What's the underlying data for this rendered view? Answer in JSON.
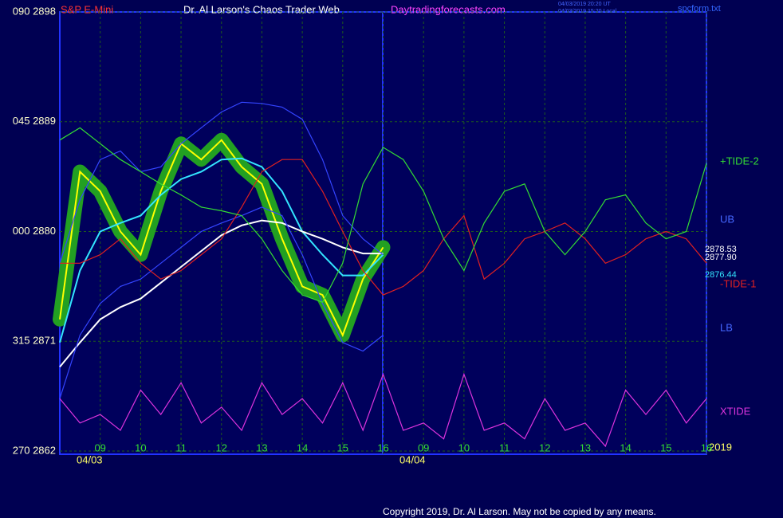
{
  "chart_data": {
    "type": "line",
    "header": {
      "symbol": "S&P E-Mini",
      "title": "Dr. Al Larson's Chaos Trader Web",
      "site": "Daytradingforecasts.com",
      "stamp_ut": "04/03/2019 20:20 UT",
      "stamp_local": "04/03/2019 15:20 Local",
      "file": "spcform.txt"
    },
    "footer": "Copyright 2019, Dr. Al Larson. May not be copied by any means.",
    "dates": [
      "04/03",
      "04/04"
    ],
    "year": "2019",
    "annotations": [
      "2878.53",
      "2877.90",
      "2876.44"
    ],
    "x": [
      0,
      0.5,
      1,
      1.5,
      2,
      2.5,
      3,
      3.5,
      4,
      4.5,
      5,
      5.5,
      6,
      6.5,
      7,
      7.5,
      8,
      8.5,
      9,
      9.5,
      10,
      10.5,
      11,
      11.5,
      12,
      12.5,
      13,
      13.5,
      14,
      14.5,
      15,
      15.5,
      16
    ],
    "xlim": [
      0,
      16
    ],
    "xticks": [
      {
        "value": 1,
        "label": "09"
      },
      {
        "value": 2,
        "label": "10"
      },
      {
        "value": 3,
        "label": "11"
      },
      {
        "value": 4,
        "label": "12"
      },
      {
        "value": 5,
        "label": "13"
      },
      {
        "value": 6,
        "label": "14"
      },
      {
        "value": 7,
        "label": "15"
      },
      {
        "value": 8,
        "label": "16"
      },
      {
        "value": 9,
        "label": "09"
      },
      {
        "value": 10,
        "label": "10"
      },
      {
        "value": 11,
        "label": "11"
      },
      {
        "value": 12,
        "label": "12"
      },
      {
        "value": 13,
        "label": "13"
      },
      {
        "value": 14,
        "label": "14"
      },
      {
        "value": 15,
        "label": "15"
      },
      {
        "value": 16,
        "label": "16"
      }
    ],
    "ylim": [
      2862,
      2898
    ],
    "yticks": [
      {
        "value": 2898,
        "label": "090 2898"
      },
      {
        "value": 2889,
        "label": "045 2889"
      },
      {
        "value": 2880,
        "label": "000 2880"
      },
      {
        "value": 2871,
        "label": "315 2871"
      },
      {
        "value": 2862,
        "label": "270 2862"
      }
    ],
    "grid": true,
    "series": [
      {
        "color": "#ffff00",
        "values": [
          2872.8,
          2884.9,
          2883.3,
          2880.0,
          2878.1,
          2883.3,
          2887.2,
          2885.9,
          2887.5,
          2885.3,
          2883.9,
          2879.4,
          2875.5,
          2874.8,
          2871.5,
          2876.1,
          2878.7,
          null,
          null,
          null,
          null,
          null,
          null,
          null,
          null,
          null,
          null,
          null,
          null,
          null,
          null,
          null,
          null
        ]
      },
      {
        "color": "#33e5ff",
        "values": [
          2870.9,
          2876.8,
          2880.0,
          2880.7,
          2881.3,
          2883.0,
          2884.3,
          2884.9,
          2885.9,
          2886.0,
          2885.3,
          2883.3,
          2880.0,
          2878.1,
          2876.4,
          2876.4,
          2878.1,
          null,
          null,
          null,
          null,
          null,
          null,
          null,
          null,
          null,
          null,
          null,
          null,
          null,
          null,
          null,
          null
        ]
      },
      {
        "color": "#ffffff",
        "values": [
          2868.9,
          2870.9,
          2872.8,
          2873.8,
          2874.5,
          2875.8,
          2877.1,
          2878.4,
          2879.7,
          2880.5,
          2880.9,
          2880.7,
          2880.0,
          2879.4,
          2878.7,
          2878.2,
          2878.2,
          null,
          null,
          null,
          null,
          null,
          null,
          null,
          null,
          null,
          null,
          null,
          null,
          null,
          null,
          null,
          null
        ]
      },
      {
        "name": "UB",
        "color": "#3344ff",
        "values": [
          2877.4,
          2882.6,
          2885.9,
          2886.6,
          2884.9,
          2885.3,
          2887.2,
          2888.5,
          2889.8,
          2890.6,
          2890.5,
          2890.2,
          2889.2,
          2885.9,
          2881.3,
          2879.4,
          2878.1,
          null,
          null,
          null,
          null,
          null,
          null,
          null,
          null,
          null,
          null,
          null,
          null,
          null,
          null,
          null,
          null
        ]
      },
      {
        "name": "LB",
        "color": "#3344ff",
        "values": [
          2866.3,
          2871.5,
          2874.1,
          2875.5,
          2876.1,
          2877.4,
          2878.7,
          2880.0,
          2880.7,
          2881.3,
          2882.0,
          2881.3,
          2878.1,
          2874.1,
          2870.9,
          2870.2,
          2871.5,
          null,
          null,
          null,
          null,
          null,
          null,
          null,
          null,
          null,
          null,
          null,
          null,
          null,
          null,
          null,
          null
        ]
      },
      {
        "name": "-TIDE-1",
        "color": "#e02020",
        "values": [
          2877.4,
          2877.4,
          2878.1,
          2879.4,
          2877.4,
          2876.1,
          2876.8,
          2878.1,
          2879.4,
          2882.0,
          2884.9,
          2885.9,
          2885.9,
          2883.3,
          2880.0,
          2876.8,
          2874.8,
          2875.5,
          2876.8,
          2879.4,
          2881.3,
          2876.1,
          2877.4,
          2879.4,
          2880.0,
          2880.7,
          2879.4,
          2877.4,
          2878.1,
          2879.4,
          2880.0,
          2879.4,
          2877.4
        ]
      },
      {
        "name": "+TIDE-2",
        "color": "#33dd33",
        "values": [
          2887.5,
          2888.5,
          2887.2,
          2885.9,
          2884.9,
          2883.9,
          2883.0,
          2882.0,
          2881.7,
          2881.3,
          2879.4,
          2876.8,
          2874.8,
          2874.2,
          2877.4,
          2883.9,
          2886.9,
          2885.9,
          2883.3,
          2879.4,
          2876.8,
          2880.7,
          2883.3,
          2883.9,
          2880.0,
          2878.1,
          2880.0,
          2882.6,
          2883.0,
          2880.7,
          2879.4,
          2880.0,
          2885.6
        ]
      },
      {
        "name": "XTIDE",
        "color": "#dd33dd",
        "values": [
          2866.3,
          2864.3,
          2865.0,
          2863.7,
          2867.0,
          2865.0,
          2867.6,
          2864.3,
          2865.6,
          2863.7,
          2867.6,
          2865.0,
          2866.3,
          2864.3,
          2867.6,
          2863.7,
          2868.3,
          2863.7,
          2864.3,
          2863.0,
          2868.3,
          2863.7,
          2864.3,
          2863.0,
          2866.3,
          2863.7,
          2864.3,
          2862.4,
          2867.0,
          2865.0,
          2867.0,
          2864.3,
          2866.3
        ]
      }
    ]
  }
}
